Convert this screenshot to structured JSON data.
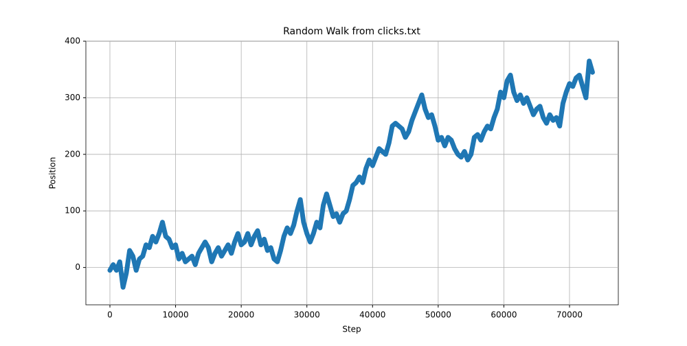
{
  "chart_data": {
    "type": "line",
    "title": "Random Walk from clicks.txt",
    "x_label": "Step",
    "y_label": "Position",
    "x": [
      0,
      500,
      1000,
      1500,
      2000,
      2500,
      3000,
      3500,
      4000,
      4500,
      5000,
      5500,
      6000,
      6500,
      7000,
      7500,
      8000,
      8500,
      9000,
      9500,
      10000,
      10500,
      11000,
      11500,
      12000,
      12500,
      13000,
      13500,
      14000,
      14500,
      15000,
      15500,
      16000,
      16500,
      17000,
      17500,
      18000,
      18500,
      19000,
      19500,
      20000,
      20500,
      21000,
      21500,
      22000,
      22500,
      23000,
      23500,
      24000,
      24500,
      25000,
      25500,
      26000,
      26500,
      27000,
      27500,
      28000,
      28500,
      29000,
      29500,
      30000,
      30500,
      31000,
      31500,
      32000,
      32500,
      33000,
      33500,
      34000,
      34500,
      35000,
      35500,
      36000,
      36500,
      37000,
      37500,
      38000,
      38500,
      39000,
      39500,
      40000,
      40500,
      41000,
      41500,
      42000,
      42500,
      43000,
      43500,
      44000,
      44500,
      45000,
      45500,
      46000,
      46500,
      47000,
      47500,
      48000,
      48500,
      49000,
      49500,
      50000,
      50500,
      51000,
      51500,
      52000,
      52500,
      53000,
      53500,
      54000,
      54500,
      55000,
      55500,
      56000,
      56500,
      57000,
      57500,
      58000,
      58500,
      59000,
      59500,
      60000,
      60500,
      61000,
      61500,
      62000,
      62500,
      63000,
      63500,
      64000,
      64500,
      65000,
      65500,
      66000,
      66500,
      67000,
      67500,
      68000,
      68500,
      69000,
      69500,
      70000,
      70500,
      71000,
      71500,
      72000,
      72500,
      73000,
      73500
    ],
    "series": [
      {
        "name": "Position",
        "color": "#1f77b4",
        "values": [
          -5,
          5,
          -5,
          10,
          -35,
          -10,
          30,
          20,
          -5,
          15,
          20,
          40,
          35,
          55,
          45,
          60,
          80,
          55,
          50,
          35,
          40,
          15,
          25,
          10,
          15,
          20,
          5,
          25,
          35,
          45,
          35,
          10,
          25,
          35,
          20,
          30,
          40,
          25,
          45,
          60,
          40,
          45,
          60,
          40,
          55,
          65,
          40,
          50,
          30,
          35,
          15,
          10,
          30,
          55,
          70,
          60,
          75,
          100,
          120,
          80,
          60,
          45,
          60,
          80,
          70,
          110,
          130,
          110,
          90,
          95,
          80,
          95,
          100,
          120,
          145,
          150,
          160,
          150,
          175,
          190,
          180,
          195,
          210,
          205,
          200,
          220,
          250,
          255,
          250,
          245,
          230,
          240,
          260,
          275,
          290,
          305,
          280,
          265,
          270,
          250,
          225,
          230,
          215,
          230,
          225,
          210,
          200,
          195,
          205,
          190,
          200,
          230,
          235,
          225,
          240,
          250,
          245,
          265,
          280,
          310,
          300,
          330,
          340,
          310,
          295,
          305,
          290,
          300,
          285,
          270,
          280,
          285,
          265,
          255,
          270,
          260,
          265,
          250,
          290,
          310,
          325,
          320,
          335,
          340,
          320,
          300,
          365,
          345
        ]
      }
    ],
    "xlim": [
      -3661,
      77430
    ],
    "ylim": [
      -66,
      400
    ],
    "xticks": [
      0,
      10000,
      20000,
      30000,
      40000,
      50000,
      60000,
      70000
    ],
    "yticks": [
      0,
      100,
      200,
      300,
      400
    ],
    "grid": true
  }
}
